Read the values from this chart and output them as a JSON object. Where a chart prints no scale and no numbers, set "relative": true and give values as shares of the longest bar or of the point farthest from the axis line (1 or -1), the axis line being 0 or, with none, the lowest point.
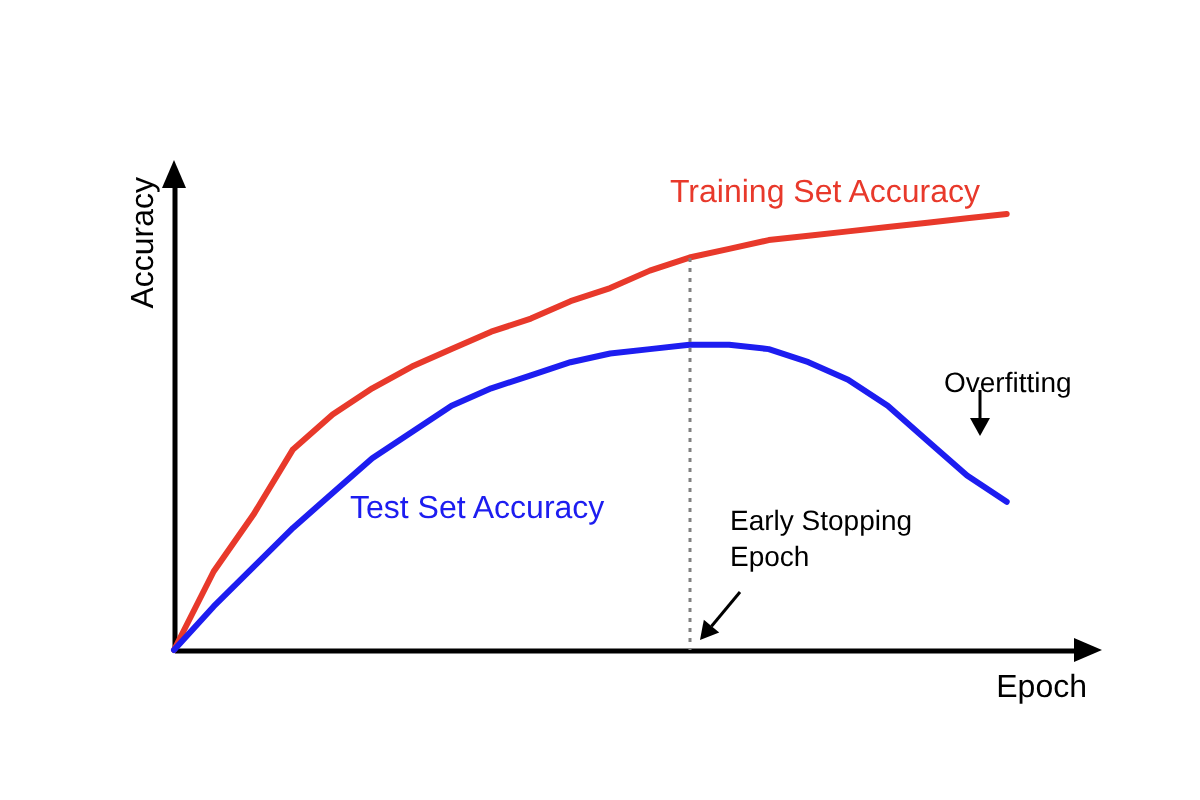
{
  "chart_data": {
    "type": "line",
    "relative": true,
    "xlabel": "Epoch",
    "ylabel": "Accuracy",
    "categories": [
      null,
      null,
      null,
      null,
      null,
      null,
      null,
      null,
      null,
      null,
      null,
      null,
      null,
      null,
      null,
      null,
      null,
      null,
      null,
      null,
      null,
      null
    ],
    "series": [
      {
        "name": "Training Set Accuracy",
        "color": "#e8392b",
        "values": [
          0,
          0.18,
          0.31,
          0.46,
          0.54,
          0.6,
          0.65,
          0.69,
          0.73,
          0.76,
          0.8,
          0.83,
          0.87,
          0.9,
          0.92,
          0.94,
          0.95,
          0.96,
          0.97,
          0.98,
          0.99,
          1.0
        ]
      },
      {
        "name": "Test Set Accuracy",
        "color": "#1d1df0",
        "values": [
          0,
          0.1,
          0.19,
          0.28,
          0.36,
          0.44,
          0.5,
          0.56,
          0.6,
          0.63,
          0.66,
          0.68,
          0.69,
          0.7,
          0.7,
          0.69,
          0.66,
          0.62,
          0.56,
          0.48,
          0.4,
          0.34
        ]
      }
    ],
    "annotations": [
      "Overfitting",
      "Early Stopping Epoch"
    ],
    "grid": false,
    "legend": false,
    "marker": "none",
    "line_style": "solid"
  }
}
